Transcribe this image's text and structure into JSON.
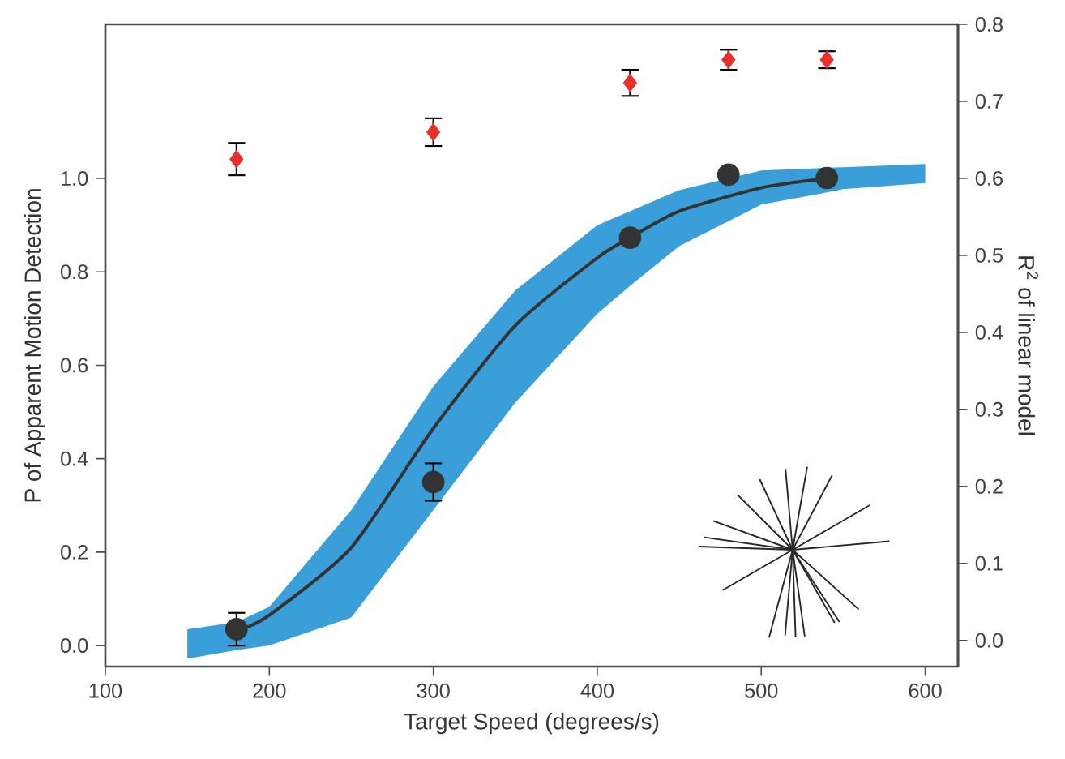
{
  "chart_data": {
    "type": "scatter",
    "xlabel": "Target Speed (degrees/s)",
    "ylabel": "P of Apparent Motion Detection",
    "y2label": "R$^{2}$ of linear model",
    "xlim": [
      100,
      620
    ],
    "xticks": [
      100,
      200,
      300,
      400,
      500,
      600
    ],
    "ylim": [
      -0.045,
      1.33
    ],
    "yticks": [
      {
        "value": 0,
        "label": "0.0"
      },
      {
        "value": 0.2,
        "label": "0.2"
      },
      {
        "value": 0.4,
        "label": "0.4"
      },
      {
        "value": 0.6,
        "label": "0.6"
      },
      {
        "value": 0.8,
        "label": "0.8"
      },
      {
        "value": 1.0,
        "label": "1.0"
      }
    ],
    "y2lim": [
      -0.034,
      0.8
    ],
    "y2ticks": [
      {
        "value": 0,
        "label": "0.0"
      },
      {
        "value": 0.1,
        "label": "0.1"
      },
      {
        "value": 0.2,
        "label": "0.2"
      },
      {
        "value": 0.3,
        "label": "0.3"
      },
      {
        "value": 0.4,
        "label": "0.4"
      },
      {
        "value": 0.5,
        "label": "0.5"
      },
      {
        "value": 0.6,
        "label": "0.6"
      },
      {
        "value": 0.7,
        "label": "0.7"
      },
      {
        "value": 0.8,
        "label": "0.8"
      }
    ],
    "grid": false,
    "series": [
      {
        "type": "area",
        "color": "#3a9fd8",
        "x": [
          150,
          180,
          200,
          250,
          300,
          350,
          400,
          420,
          450,
          500,
          540,
          550,
          600
        ],
        "values": [
          null,
          null,
          null,
          null,
          null,
          null,
          null,
          null,
          null,
          null,
          null,
          null,
          null
        ],
        "lower": [
          -0.028,
          -0.01,
          0.0,
          0.06,
          0.29,
          0.52,
          0.71,
          0.77,
          0.855,
          0.944,
          0.97,
          0.977,
          0.99
        ],
        "upper": [
          0.035,
          0.05,
          0.083,
          0.29,
          0.555,
          0.76,
          0.9,
          0.93,
          0.975,
          1.017,
          1.023,
          1.024,
          1.031
        ]
      },
      {
        "type": "line",
        "color": "#333333",
        "x": [
          180,
          200,
          250,
          300,
          350,
          400,
          420,
          450,
          500,
          540
        ],
        "values": [
          0.03,
          0.065,
          0.21,
          0.465,
          0.685,
          0.83,
          0.873,
          0.93,
          0.98,
          1.0
        ],
        "marker": "none",
        "line_style": "solid"
      },
      {
        "color": "#333333",
        "marker": "circle",
        "x": [
          180,
          300,
          420,
          480,
          540
        ],
        "values": [
          0.035,
          0.35,
          0.873,
          1.008,
          1.001
        ],
        "errors": [
          0.035,
          0.04,
          null,
          null,
          null
        ]
      },
      {
        "color": "#e8302a",
        "marker": "diamond",
        "axis": "y2",
        "x": [
          180,
          300,
          420,
          480,
          540
        ],
        "values": [
          0.625,
          0.66,
          0.724,
          0.754,
          0.754
        ],
        "errors": [
          0.021,
          0.018,
          0.017,
          0.013,
          0.011
        ]
      }
    ]
  }
}
